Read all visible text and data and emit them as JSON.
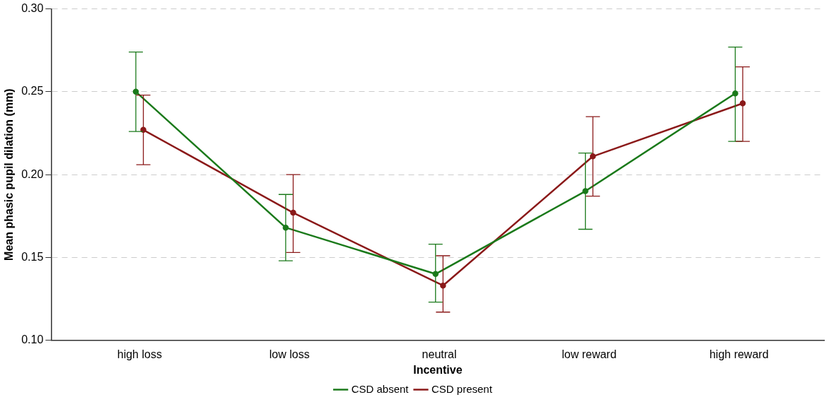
{
  "chart_data": {
    "type": "line",
    "xlabel": "Incentive",
    "ylabel": "Mean phasic pupil dilation (mm)",
    "categories": [
      "high loss",
      "low loss",
      "neutral",
      "low reward",
      "high reward"
    ],
    "series": [
      {
        "name": "CSD absent",
        "color": "#1b7a1b",
        "values": [
          0.25,
          0.168,
          0.14,
          0.19,
          0.249
        ],
        "errors": [
          [
            0.226,
            0.274
          ],
          [
            0.148,
            0.188
          ],
          [
            0.123,
            0.158
          ],
          [
            0.167,
            0.213
          ],
          [
            0.22,
            0.277
          ]
        ]
      },
      {
        "name": "CSD present",
        "color": "#8b1a1a",
        "values": [
          0.227,
          0.177,
          0.133,
          0.211,
          0.243
        ],
        "errors": [
          [
            0.206,
            0.248
          ],
          [
            0.153,
            0.2
          ],
          [
            0.117,
            0.151
          ],
          [
            0.187,
            0.235
          ],
          [
            0.22,
            0.265
          ]
        ]
      }
    ],
    "ylim": [
      0.1,
      0.3
    ],
    "yticks": [
      {
        "value": 0.1,
        "label": "0.10"
      },
      0.15,
      {
        "value": 0.2,
        "label": "0.20"
      },
      0.25,
      {
        "value": 0.3,
        "label": "0.30"
      }
    ],
    "grid": "y",
    "legend": "bottom",
    "marker": "circle",
    "line_style": "solid"
  }
}
